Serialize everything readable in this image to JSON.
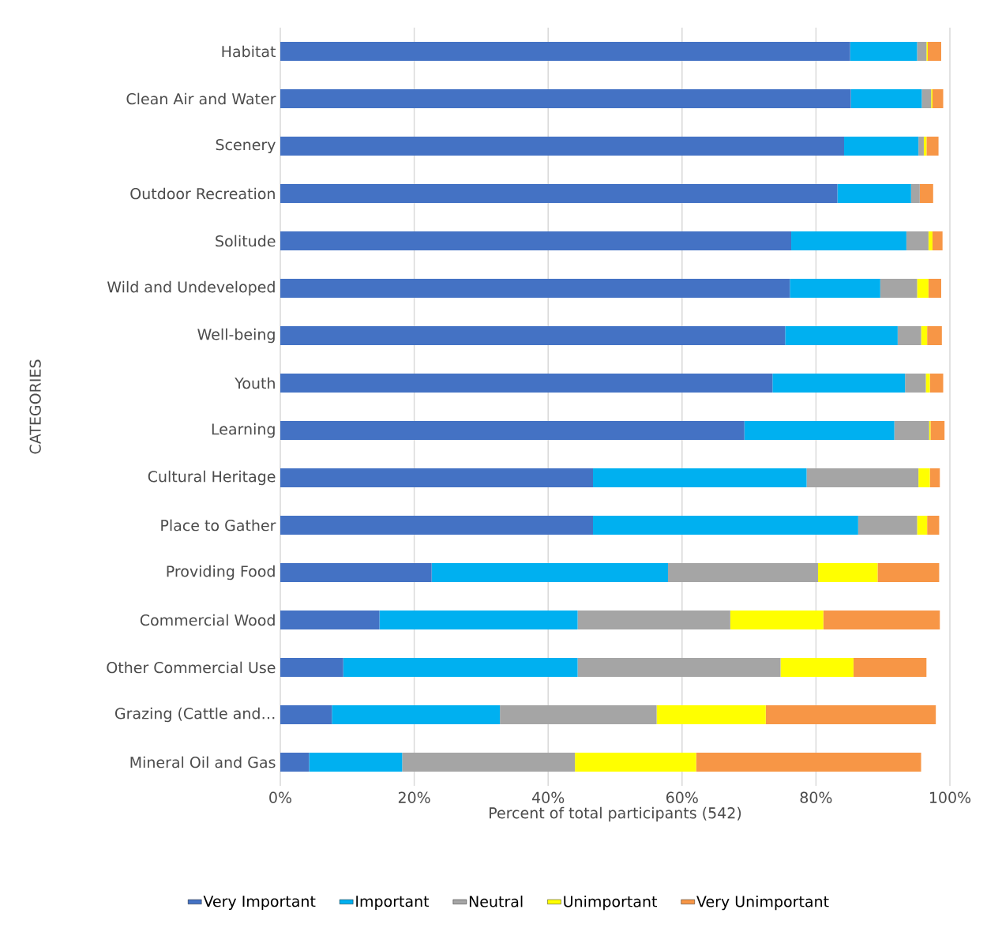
{
  "chart_data": {
    "type": "bar",
    "orientation": "horizontal",
    "stacked": true,
    "xlabel": "Percent of total participants (542)",
    "ylabel": "CATEGORIES",
    "categories": [
      "Habitat",
      "Clean Air and Water",
      "Scenery",
      "Outdoor Recreation",
      "Solitude",
      "Wild and Undeveloped",
      "Well-being",
      "Youth",
      "Learning",
      "Cultural Heritage",
      "Place to Gather",
      "Providing Food",
      "Commercial Wood",
      "Other Commercial Use",
      "Grazing (Cattle and…",
      "Mineral Oil and Gas"
    ],
    "series": [
      {
        "name": "Very Important",
        "color": "#4472c4",
        "values": [
          85.1,
          85.2,
          84.2,
          83.2,
          76.3,
          76.1,
          75.4,
          73.5,
          69.3,
          46.7,
          46.7,
          22.6,
          14.8,
          9.4,
          7.7,
          4.3
        ]
      },
      {
        "name": "Important",
        "color": "#00b0f0",
        "values": [
          10.0,
          10.6,
          11.1,
          11.0,
          17.2,
          13.5,
          16.8,
          19.8,
          22.4,
          31.9,
          39.6,
          35.3,
          29.6,
          35.0,
          25.1,
          13.9
        ]
      },
      {
        "name": "Neutral",
        "color": "#a5a5a5",
        "values": [
          1.4,
          1.4,
          0.8,
          1.3,
          3.3,
          5.5,
          3.5,
          3.1,
          5.2,
          16.7,
          8.8,
          22.4,
          22.8,
          30.3,
          23.4,
          25.8
        ]
      },
      {
        "name": "Unimportant",
        "color": "#ffff00",
        "values": [
          0.2,
          0.2,
          0.4,
          0,
          0.6,
          1.7,
          0.9,
          0.6,
          0.2,
          1.7,
          1.5,
          8.9,
          13.9,
          10.9,
          16.3,
          18.1
        ]
      },
      {
        "name": "Very Unimportant",
        "color": "#f79646",
        "values": [
          2.0,
          1.6,
          1.8,
          2.0,
          1.5,
          1.9,
          2.2,
          2.0,
          2.1,
          1.5,
          1.8,
          9.2,
          17.4,
          10.9,
          25.4,
          33.6
        ]
      }
    ],
    "xlim": [
      0,
      100
    ],
    "xticks": [
      {
        "value": 0,
        "label": "0%"
      },
      {
        "value": 20,
        "label": "20%"
      },
      {
        "value": 40,
        "label": "40%"
      },
      {
        "value": 60,
        "label": "60%"
      },
      {
        "value": 80,
        "label": "80%"
      },
      {
        "value": 100,
        "label": "100%"
      }
    ],
    "grid": "x",
    "legend": "bottom"
  }
}
